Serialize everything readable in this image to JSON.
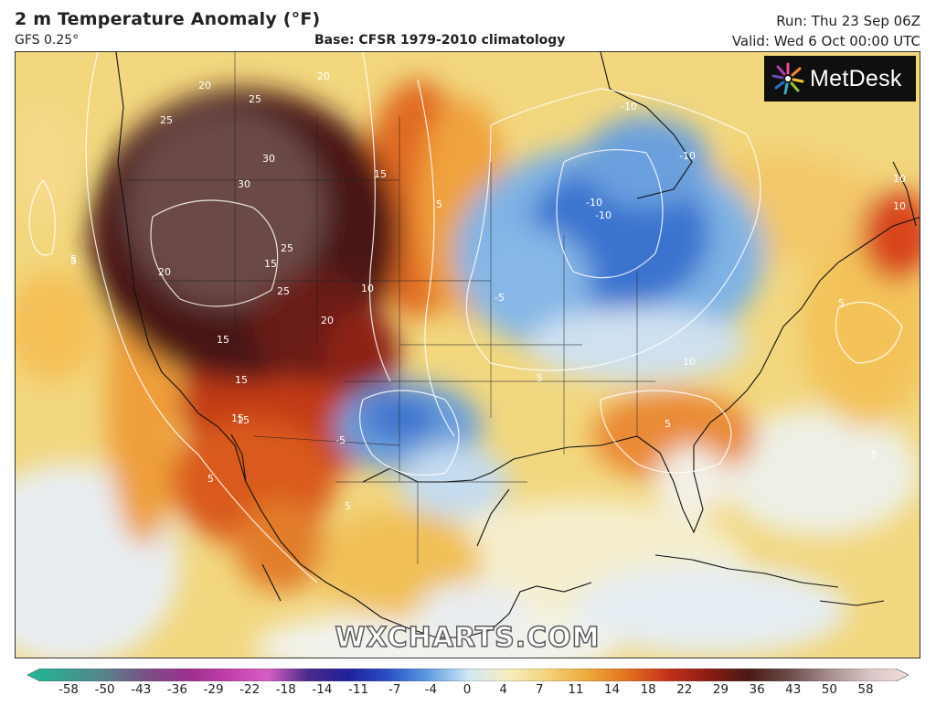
{
  "header": {
    "title": "2 m Temperature Anomaly (°F)",
    "model": "GFS 0.25°",
    "base": "Base: CFSR 1979-2010 climatology",
    "run": "Run: Thu 23 Sep 06Z",
    "valid": "Valid: Wed 6 Oct 00:00 UTC"
  },
  "logo": {
    "text": "MetDesk"
  },
  "watermark": "WXCHARTS.COM",
  "colorbar": {
    "ticks": [
      "-58",
      "-50",
      "-43",
      "-36",
      "-29",
      "-22",
      "-18",
      "-14",
      "-11",
      "-7",
      "-4",
      "0",
      "4",
      "7",
      "11",
      "14",
      "18",
      "22",
      "29",
      "36",
      "43",
      "50",
      "58"
    ],
    "colors": [
      "#1fb89a",
      "#3a9d8f",
      "#5b7f8a",
      "#7a4f86",
      "#9b2f8f",
      "#c03ea8",
      "#d65fc4",
      "#4a2a8a",
      "#1f1f9a",
      "#2a4fc6",
      "#5d9ce0",
      "#cfe6f5",
      "#f6eec0",
      "#f4d27a",
      "#eda83a",
      "#e2701f",
      "#c4301a",
      "#8c1c14",
      "#4a1a14",
      "#6a4a48",
      "#a48c8c",
      "#d8c4c4",
      "#f4dede"
    ]
  },
  "map": {
    "contour_labels": [
      "20",
      "25",
      "20",
      "25",
      "30",
      "30",
      "25",
      "20",
      "15",
      "15",
      "25",
      "20",
      "15",
      "10",
      "15",
      "15",
      "15",
      "5",
      "-10",
      "-10",
      "-10",
      "-10",
      "10",
      "10",
      "5",
      "5",
      "10",
      "5",
      "5",
      "5",
      "-5",
      "-5",
      "5",
      "5",
      "5"
    ]
  }
}
